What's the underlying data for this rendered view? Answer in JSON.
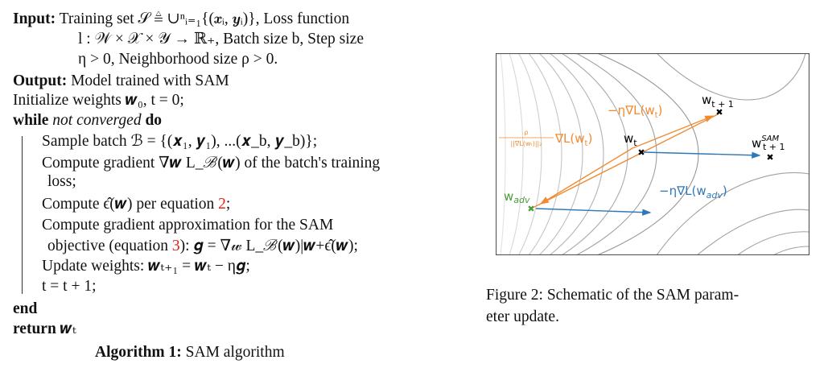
{
  "algorithm": {
    "input_kw": "Input:",
    "input_1": "Training set 𝒮 ≜ ∪ⁿᵢ₌₁{(𝒙ᵢ, 𝒚ᵢ)}, Loss function",
    "input_2": "l : 𝒲 × 𝒳 × 𝒴 → ℝ₊, Batch size b, Step size",
    "input_3": "η > 0, Neighborhood size ρ > 0.",
    "output_kw": "Output:",
    "output_text": "Model trained with SAM",
    "init": "Initialize weights 𝒘₀, t = 0;",
    "while_kw": "while",
    "while_cond": "not converged",
    "do_kw": "do",
    "sample": "Sample batch ℬ = {(𝒙₁, 𝒚₁), ...(𝒙_b, 𝒚_b)};",
    "grad_1": "Compute gradient ∇𝒘 L_ℬ(𝒘) of the batch's training",
    "grad_2": "loss;",
    "eps_pre": "Compute ϵ̂(𝒘) per equation ",
    "eps_ref": "2",
    "eps_post": ";",
    "approx_1": "Compute gradient approximation for the SAM",
    "approx_pre": "objective (equation ",
    "approx_ref": "3",
    "approx_post": "): 𝒈 = ∇𝓌 L_ℬ(𝒘)|𝒘+ϵ̂(𝒘);",
    "update": "Update weights: 𝒘ₜ₊₁ = 𝒘ₜ − η𝒈;",
    "incr": "t = t + 1;",
    "end_kw": "end",
    "return_kw": "return",
    "return_val": "𝒘ₜ",
    "caption_kw": "Algorithm 1:",
    "caption_text": "SAM algorithm"
  },
  "figure": {
    "label_wt1": "w",
    "label_wt1_sub": "t + 1",
    "label_wt": "w",
    "label_wt_sub": "t",
    "label_sam": "w",
    "label_sam_sup": "SAM",
    "label_sam_sub": "t + 1",
    "label_adv": "w",
    "label_adv_sub": "adv",
    "label_step": "−η∇L(w",
    "label_step_sub": "t",
    "label_step_end": ")",
    "label_asc_num": "ρ",
    "label_asc_den": "||∇L(wₜ)||₂",
    "label_asc": "∇L(w",
    "label_asc_sub": "t",
    "label_asc_end": ")",
    "label_sam_step": "−η∇L(w",
    "label_sam_step_sub": "adv",
    "label_sam_step_end": ")",
    "colors": {
      "orange": "#f28a30",
      "blue": "#2f78b8",
      "green": "#4a9a3a",
      "contour": "#9a9a9a"
    },
    "caption_1": "Figure 2: Schematic of the SAM param-",
    "caption_2": "eter update."
  }
}
